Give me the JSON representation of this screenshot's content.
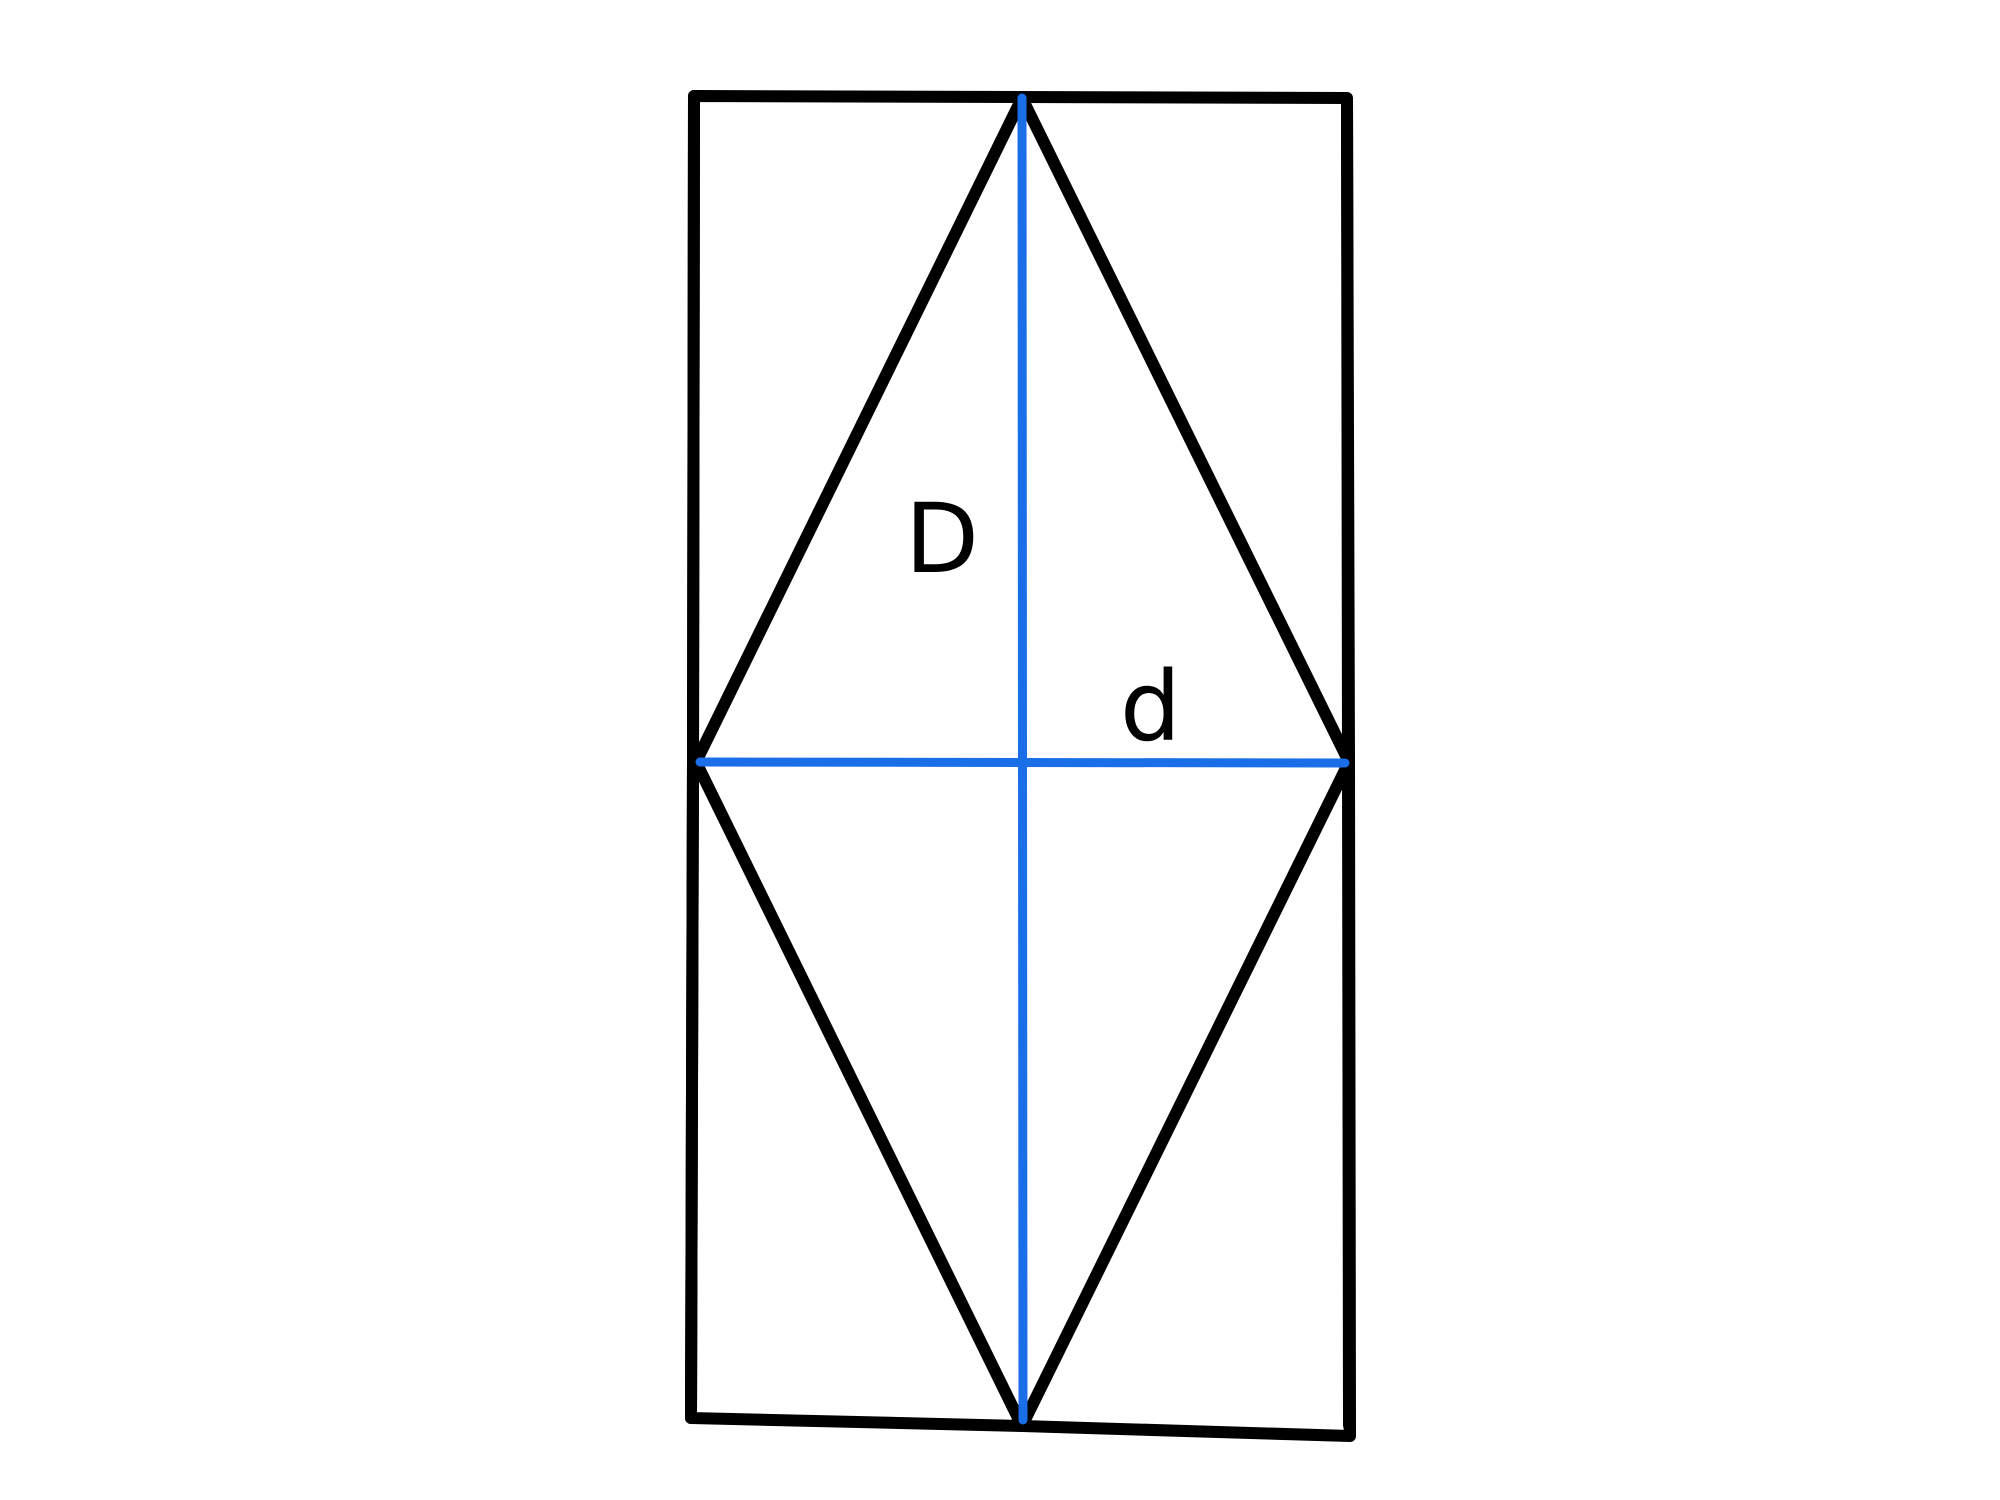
{
  "labels": {
    "long_diagonal": "D",
    "short_diagonal": "d"
  },
  "colors": {
    "outline": "#000000",
    "diagonals": "#1a6fe8",
    "background": "#ffffff"
  }
}
